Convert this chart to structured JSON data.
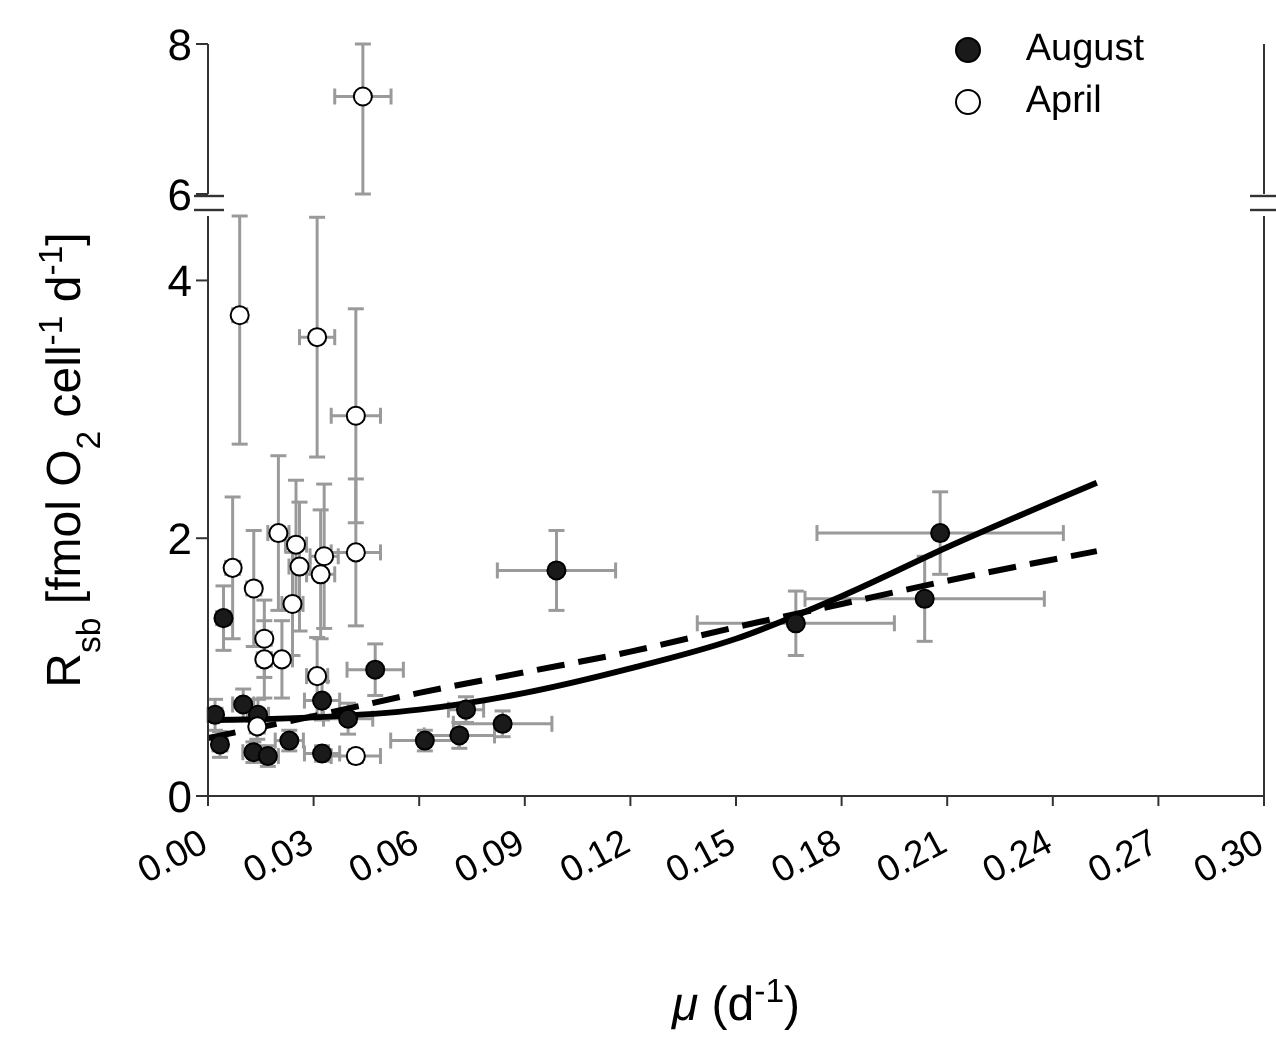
{
  "chart_data": [
    {
      "type": "scatter",
      "xlim": [
        0,
        0.3
      ],
      "ylim": [
        6,
        8
      ],
      "yticks": [
        6,
        8
      ],
      "tick_labels": "y",
      "marker": "circle",
      "series": [
        {
          "color": "#ffffff",
          "x": [
            0.044
          ],
          "values": [
            7.3
          ],
          "errors": [
            [
              6.0,
              8.0
            ]
          ],
          "xerrors": [
            0.008
          ]
        }
      ]
    },
    {
      "type": "scatter",
      "xlabel": "μ (d$^{-1}$)",
      "ylabel": "R$_{sb}$ [fmol O$_{2}$ cell$^{-1}$ d$^{-1}$]",
      "xlim": [
        0,
        0.3
      ],
      "xticks": [
        {
          "value": 0,
          "label": "0.00"
        },
        0.03,
        0.06,
        0.09,
        0.12,
        0.15,
        0.18,
        0.21,
        0.24,
        0.27,
        {
          "value": 0.3,
          "label": "0.30"
        }
      ],
      "ylim": [
        0,
        4.5
      ],
      "yticks": [
        0,
        2,
        4
      ],
      "marker": "circle",
      "legend": "top right",
      "series": [
        {
          "name": "August",
          "color": "#1a1a1a",
          "x": [
            0.002,
            0.0034,
            0.0044,
            0.01,
            0.0142,
            0.0129,
            0.017,
            0.0231,
            0.0324,
            0.0324,
            0.0398,
            0.0475,
            0.0616,
            0.0714,
            0.0733,
            0.0837,
            0.099,
            0.167,
            0.2036,
            0.208
          ],
          "values": [
            0.63,
            0.4,
            1.38,
            0.71,
            0.63,
            0.34,
            0.31,
            0.43,
            0.74,
            0.33,
            0.6,
            0.98,
            0.43,
            0.47,
            0.67,
            0.56,
            1.75,
            1.34,
            1.53,
            2.04
          ],
          "errors": [
            0.12,
            0.1,
            0.25,
            0.12,
            0.12,
            0.08,
            0.08,
            0.08,
            0.15,
            0.06,
            0.12,
            0.2,
            0.08,
            0.1,
            0.1,
            0.1,
            0.31,
            0.25,
            0.33,
            0.32
          ],
          "xerrors": [
            0.002,
            0.002,
            0.002,
            0.003,
            0.003,
            0.003,
            0.003,
            0.004,
            0.005,
            0.005,
            0.007,
            0.008,
            0.0097,
            0.01,
            0.005,
            0.014,
            0.0168,
            0.028,
            0.034,
            0.035
          ]
        },
        {
          "name": "April",
          "color": "#ffffff",
          "x": [
            0.009,
            0.031,
            0.042,
            0.007,
            0.013,
            0.02,
            0.025,
            0.026,
            0.033,
            0.032,
            0.042,
            0.024,
            0.016,
            0.016,
            0.021,
            0.031,
            0.014,
            0.042
          ],
          "values": [
            3.73,
            3.56,
            2.95,
            1.77,
            1.61,
            2.04,
            1.95,
            1.78,
            1.86,
            1.72,
            1.89,
            1.49,
            1.22,
            1.06,
            1.06,
            0.93,
            0.54,
            0.31
          ],
          "errors": [
            [
              2.73,
              4.5
            ],
            0.93,
            0.83,
            0.55,
            0.45,
            0.6,
            0.5,
            0.5,
            0.56,
            0.5,
            0.57,
            0.4,
            0.3,
            0.3,
            0.3,
            0.3,
            0.1,
            0.05
          ],
          "xerrors": [
            0.002,
            0.005,
            0.007,
            0.002,
            0.002,
            0.003,
            0.003,
            0.003,
            0.004,
            0.004,
            0.007,
            0.003,
            0.002,
            0.002,
            0.003,
            0.003,
            0.002,
            0.007
          ]
        },
        {
          "type": "line",
          "color": "#000000",
          "line_style": "solid",
          "marker": "none",
          "x": [
            0,
            0.03,
            0.06,
            0.09,
            0.12,
            0.15,
            0.18,
            0.21,
            0.2525
          ],
          "values": [
            0.59,
            0.61,
            0.67,
            0.8,
            0.99,
            1.22,
            1.55,
            1.93,
            2.43
          ]
        },
        {
          "type": "line",
          "color": "#000000",
          "line_style": "dashed",
          "marker": "none",
          "x": [
            0,
            0.03,
            0.06,
            0.09,
            0.12,
            0.15,
            0.18,
            0.21,
            0.2525
          ],
          "values": [
            0.45,
            0.62,
            0.8,
            0.96,
            1.12,
            1.31,
            1.49,
            1.67,
            1.9
          ]
        }
      ]
    }
  ]
}
